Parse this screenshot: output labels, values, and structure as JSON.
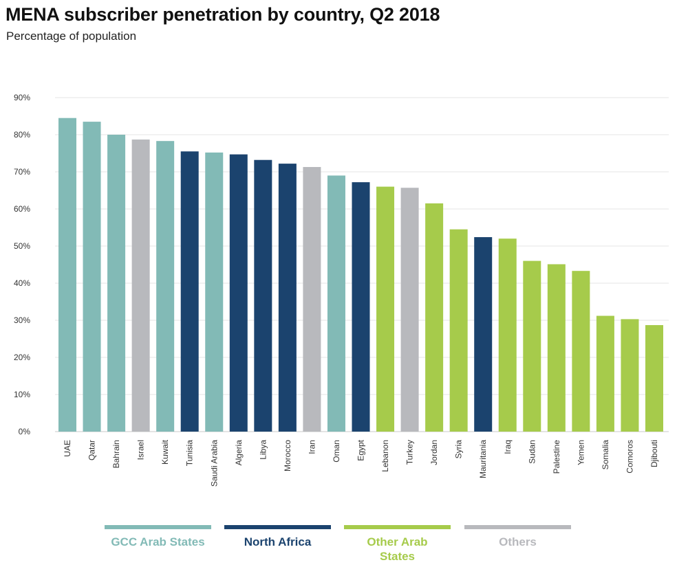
{
  "chart_data": {
    "type": "bar",
    "title": "MENA subscriber penetration by country, Q2 2018",
    "subtitle": "Percentage of population",
    "xlabel": "",
    "ylabel": "",
    "ylim": [
      0,
      90
    ],
    "yticks": [
      0,
      10,
      20,
      30,
      40,
      50,
      60,
      70,
      80,
      90
    ],
    "ytick_labels": [
      "0%",
      "10%",
      "20%",
      "30%",
      "40%",
      "50%",
      "60%",
      "70%",
      "80%",
      "90%"
    ],
    "grid": true,
    "legend_position": "bottom",
    "categories": [
      "UAE",
      "Qatar",
      "Bahrain",
      "Israel",
      "Kuwait",
      "Tunisia",
      "Saudi Arabia",
      "Algeria",
      "Libya",
      "Morocco",
      "Iran",
      "Oman",
      "Egypt",
      "Lebanon",
      "Turkey",
      "Jordan",
      "Syria",
      "Mauritania",
      "Iraq",
      "Sudan",
      "Palestine",
      "Yemen",
      "Somalia",
      "Comoros",
      "Djibouti"
    ],
    "values": [
      84.5,
      83.5,
      80,
      78.7,
      78.3,
      75.5,
      75.2,
      74.7,
      73.2,
      72.2,
      71.3,
      69,
      67.2,
      66,
      65.7,
      61.5,
      54.5,
      52.4,
      52,
      46,
      45.1,
      43.3,
      31.2,
      30.3,
      28.7
    ],
    "groups": [
      "GCC Arab States",
      "GCC Arab States",
      "GCC Arab States",
      "Others",
      "GCC Arab States",
      "North Africa",
      "GCC Arab States",
      "North Africa",
      "North Africa",
      "North Africa",
      "Others",
      "GCC Arab States",
      "North Africa",
      "Other Arab States",
      "Others",
      "Other Arab States",
      "Other Arab States",
      "North Africa",
      "Other Arab States",
      "Other Arab States",
      "Other Arab States",
      "Other Arab States",
      "Other Arab States",
      "Other Arab States",
      "Other Arab States"
    ],
    "legend": [
      {
        "name": "GCC Arab States",
        "color": "#82bab6"
      },
      {
        "name": "North Africa",
        "color": "#1b436e"
      },
      {
        "name": "Other Arab States",
        "color": "#a6cb4b"
      },
      {
        "name": "Others",
        "color": "#b8b9bd"
      }
    ]
  },
  "colors": {
    "gridline": "#e6e6e6",
    "axis": "#c8c8c8",
    "tick_text": "#333333"
  }
}
